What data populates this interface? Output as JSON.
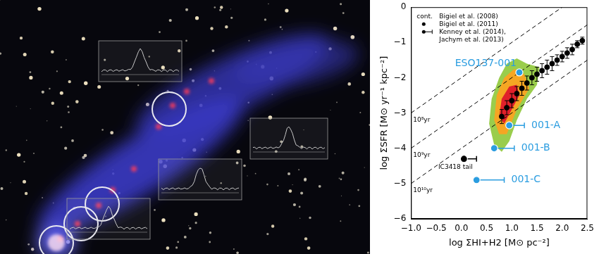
{
  "chart_data": {
    "type": "scatter",
    "x_label": "log ΣHI+H2 [M⊙ pc⁻²]",
    "y_label": "log ΣSFR [M⊙ yr⁻¹ kpc⁻²]",
    "xlim": [
      -1.0,
      2.5
    ],
    "xticks": [
      {
        "value": -1.0,
        "label": "−1.0"
      },
      {
        "value": -0.5,
        "label": "−0.5"
      },
      {
        "value": 0.0,
        "label": "0.0"
      },
      {
        "value": 0.5,
        "label": "0.5"
      },
      {
        "value": 1.0,
        "label": "1.0"
      },
      {
        "value": 1.5,
        "label": "1.5"
      },
      {
        "value": 2.0,
        "label": "2.0"
      },
      {
        "value": 2.5,
        "label": "2.5"
      }
    ],
    "ylim": [
      -6,
      0
    ],
    "yticks": [
      {
        "value": -6,
        "label": "−6"
      },
      {
        "value": -5,
        "label": "−5"
      },
      {
        "value": -4,
        "label": "−4"
      },
      {
        "value": -3,
        "label": "−3"
      },
      {
        "value": -2,
        "label": "−2"
      },
      {
        "value": -1,
        "label": "−1"
      },
      0
    ],
    "grid": false,
    "legend": "top left",
    "series": [
      {
        "name": "Bigiel et al. (2008)",
        "type": "contour",
        "legend_symbol": "cont.",
        "levels": [
          {
            "color": "#9acd4c",
            "x": [
              0.55,
              0.6,
              0.75,
              0.9,
              1.1,
              1.3,
              1.55,
              1.5,
              1.3,
              1.1,
              0.95,
              0.8,
              0.65
            ],
            "y": [
              -3.3,
              -2.6,
              -2.0,
              -1.6,
              -1.45,
              -1.6,
              -1.7,
              -2.2,
              -2.6,
              -3.2,
              -3.8,
              -4.1,
              -3.9
            ]
          },
          {
            "color": "#f5a623",
            "x": [
              0.65,
              0.7,
              0.85,
              1.05,
              1.25,
              1.35,
              1.1,
              0.9,
              0.75
            ],
            "y": [
              -3.2,
              -2.5,
              -2.0,
              -1.75,
              -1.9,
              -2.3,
              -2.9,
              -3.6,
              -3.6
            ]
          },
          {
            "color": "#e0202a",
            "x": [
              0.75,
              0.8,
              0.95,
              1.1,
              1.15,
              1.0,
              0.85
            ],
            "y": [
              -3.1,
              -2.6,
              -2.25,
              -2.2,
              -2.5,
              -2.9,
              -3.3
            ]
          }
        ]
      },
      {
        "name": "Bigiel et al. (2011)",
        "type": "scatter",
        "marker": "circle",
        "color": "#000000",
        "x": [
          0.8,
          0.9,
          1.0,
          1.1,
          1.2,
          1.3,
          1.4,
          1.5,
          1.6,
          1.7,
          1.8,
          1.9,
          2.0,
          2.1,
          2.2,
          2.3,
          2.4
        ],
        "y": [
          -3.1,
          -2.85,
          -2.65,
          -2.45,
          -2.3,
          -2.15,
          -2.0,
          -1.9,
          -1.8,
          -1.7,
          -1.6,
          -1.5,
          -1.4,
          -1.3,
          -1.2,
          -1.05,
          -0.95
        ],
        "yerr": [
          0.2,
          0.2,
          0.2,
          0.2,
          0.2,
          0.2,
          0.2,
          0.2,
          0.2,
          0.2,
          0.2,
          0.15,
          0.15,
          0.15,
          0.15,
          0.1,
          0.1
        ]
      },
      {
        "name": "Kenney et al. (2014), Jachym et al. (2013)",
        "type": "scatter",
        "marker": "circle",
        "color": "#000000",
        "labels": [
          "ESO137-001",
          "001-A",
          "001-B",
          "001-C",
          "IC3418 tail"
        ],
        "colors": [
          "#2b9de0",
          "#2b9de0",
          "#2b9de0",
          "#2b9de0",
          "#000000"
        ],
        "x": [
          1.15,
          0.95,
          0.65,
          0.3,
          0.05
        ],
        "y": [
          -1.85,
          -3.35,
          -4.0,
          -4.9,
          -4.3
        ],
        "xerr": [
          null,
          0.3,
          0.4,
          0.55,
          0.25
        ]
      }
    ],
    "depletion_lines": [
      {
        "label": "10⁸yr",
        "x": [
          -1.0,
          2.0
        ],
        "y": [
          -3.0,
          0.0
        ]
      },
      {
        "label": "10⁹yr",
        "x": [
          -1.0,
          2.5
        ],
        "y": [
          -4.0,
          -0.5
        ]
      },
      {
        "label": "10¹⁰yr",
        "x": [
          -1.0,
          2.5
        ],
        "y": [
          -5.0,
          -1.5
        ]
      }
    ]
  }
}
